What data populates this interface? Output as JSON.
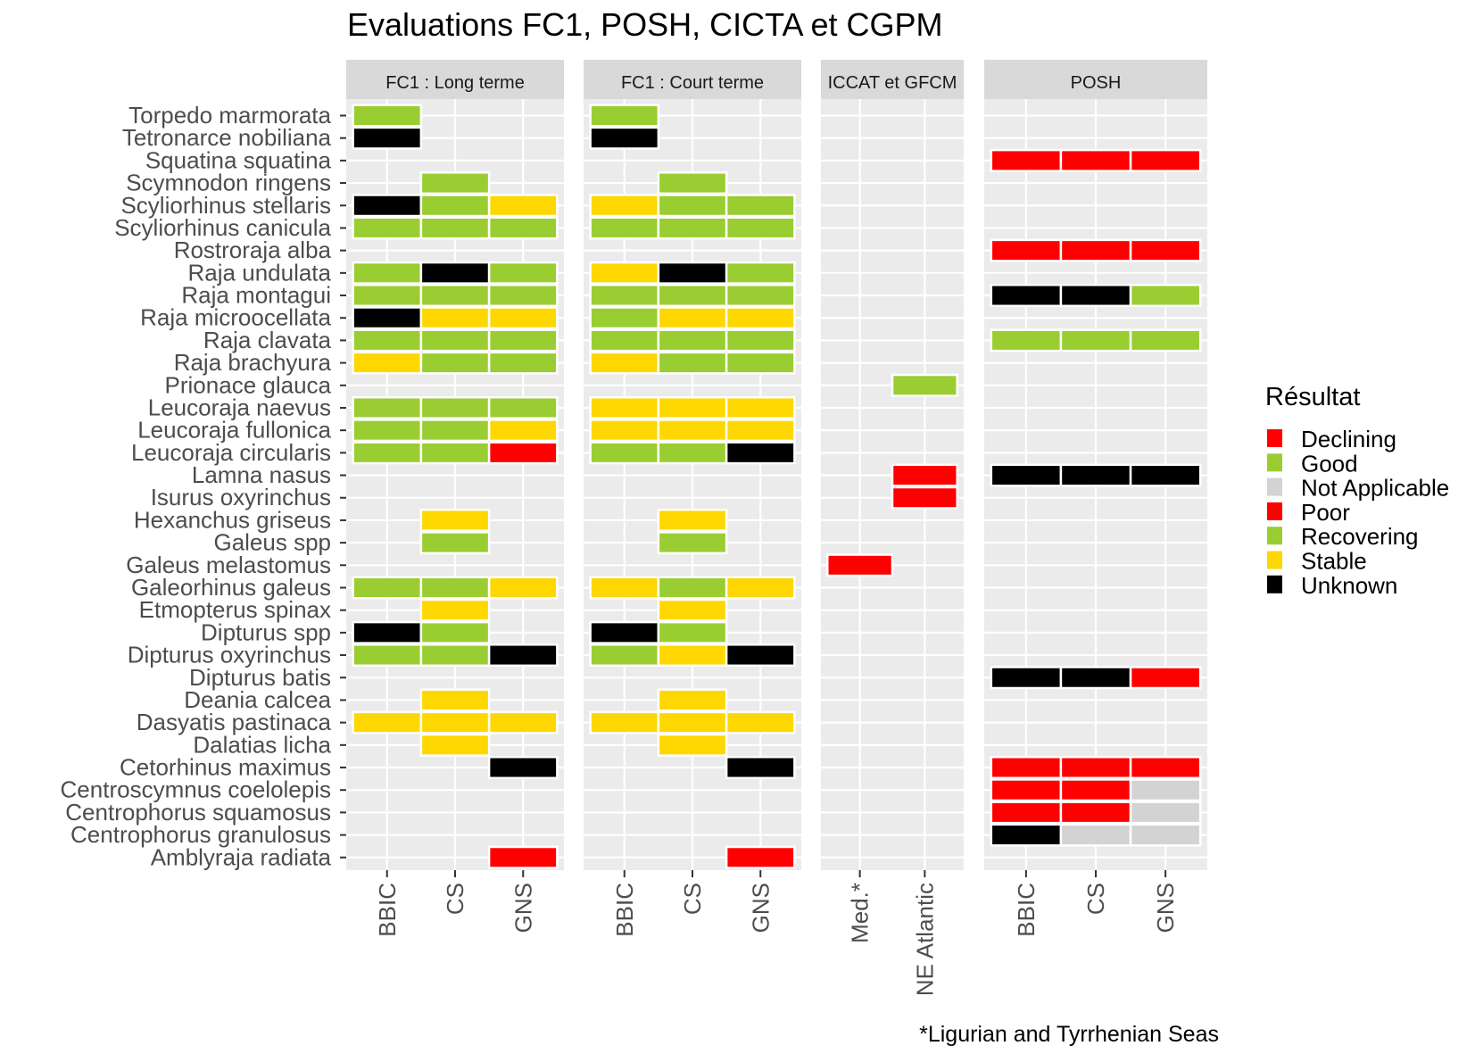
{
  "chart_data": {
    "type": "heatmap",
    "title": "Evaluations FC1, POSH, CICTA et CGPM",
    "caption": "*Ligurian and Tyrrhenian Seas",
    "legend_title": "Résultat",
    "legend_position": "right",
    "legend": [
      {
        "label": "Declining",
        "color": "#FF0000"
      },
      {
        "label": "Good",
        "color": "#9ACD32"
      },
      {
        "label": "Not Applicable",
        "color": "#D3D3D3"
      },
      {
        "label": "Poor",
        "color": "#FF0000"
      },
      {
        "label": "Recovering",
        "color": "#9ACD32"
      },
      {
        "label": "Stable",
        "color": "#FFD700"
      },
      {
        "label": "Unknown",
        "color": "#000000"
      }
    ],
    "species": [
      "Torpedo marmorata",
      "Tetronarce nobiliana",
      "Squatina squatina",
      "Scymnodon ringens",
      "Scyliorhinus stellaris",
      "Scyliorhinus canicula",
      "Rostroraja alba",
      "Raja undulata",
      "Raja montagui",
      "Raja microocellata",
      "Raja clavata",
      "Raja brachyura",
      "Prionace glauca",
      "Leucoraja naevus",
      "Leucoraja fullonica",
      "Leucoraja circularis",
      "Lamna nasus",
      "Isurus oxyrinchus",
      "Hexanchus griseus",
      "Galeus spp",
      "Galeus melastomus",
      "Galeorhinus galeus",
      "Etmopterus spinax",
      "Dipturus spp",
      "Dipturus oxyrinchus",
      "Dipturus batis",
      "Deania calcea",
      "Dasyatis pastinaca",
      "Dalatias licha",
      "Cetorhinus maximus",
      "Centroscymnus coelolepis",
      "Centrophorus squamosus",
      "Centrophorus granulosus",
      "Amblyraja radiata"
    ],
    "panels": [
      {
        "strip": "FC1 : Long terme",
        "columns": [
          "BBIC",
          "CS",
          "GNS"
        ],
        "cells": [
          {
            "species": "Torpedo marmorata",
            "column": "BBIC",
            "value": "Good"
          },
          {
            "species": "Tetronarce nobiliana",
            "column": "BBIC",
            "value": "Unknown"
          },
          {
            "species": "Scymnodon ringens",
            "column": "CS",
            "value": "Good"
          },
          {
            "species": "Scyliorhinus stellaris",
            "column": "BBIC",
            "value": "Unknown"
          },
          {
            "species": "Scyliorhinus stellaris",
            "column": "CS",
            "value": "Good"
          },
          {
            "species": "Scyliorhinus stellaris",
            "column": "GNS",
            "value": "Stable"
          },
          {
            "species": "Scyliorhinus canicula",
            "column": "BBIC",
            "value": "Good"
          },
          {
            "species": "Scyliorhinus canicula",
            "column": "CS",
            "value": "Good"
          },
          {
            "species": "Scyliorhinus canicula",
            "column": "GNS",
            "value": "Good"
          },
          {
            "species": "Raja undulata",
            "column": "BBIC",
            "value": "Good"
          },
          {
            "species": "Raja undulata",
            "column": "CS",
            "value": "Unknown"
          },
          {
            "species": "Raja undulata",
            "column": "GNS",
            "value": "Good"
          },
          {
            "species": "Raja montagui",
            "column": "BBIC",
            "value": "Good"
          },
          {
            "species": "Raja montagui",
            "column": "CS",
            "value": "Good"
          },
          {
            "species": "Raja montagui",
            "column": "GNS",
            "value": "Good"
          },
          {
            "species": "Raja microocellata",
            "column": "BBIC",
            "value": "Unknown"
          },
          {
            "species": "Raja microocellata",
            "column": "CS",
            "value": "Stable"
          },
          {
            "species": "Raja microocellata",
            "column": "GNS",
            "value": "Stable"
          },
          {
            "species": "Raja clavata",
            "column": "BBIC",
            "value": "Good"
          },
          {
            "species": "Raja clavata",
            "column": "CS",
            "value": "Good"
          },
          {
            "species": "Raja clavata",
            "column": "GNS",
            "value": "Good"
          },
          {
            "species": "Raja brachyura",
            "column": "BBIC",
            "value": "Stable"
          },
          {
            "species": "Raja brachyura",
            "column": "CS",
            "value": "Good"
          },
          {
            "species": "Raja brachyura",
            "column": "GNS",
            "value": "Good"
          },
          {
            "species": "Leucoraja naevus",
            "column": "BBIC",
            "value": "Good"
          },
          {
            "species": "Leucoraja naevus",
            "column": "CS",
            "value": "Good"
          },
          {
            "species": "Leucoraja naevus",
            "column": "GNS",
            "value": "Good"
          },
          {
            "species": "Leucoraja fullonica",
            "column": "BBIC",
            "value": "Good"
          },
          {
            "species": "Leucoraja fullonica",
            "column": "CS",
            "value": "Good"
          },
          {
            "species": "Leucoraja fullonica",
            "column": "GNS",
            "value": "Stable"
          },
          {
            "species": "Leucoraja circularis",
            "column": "BBIC",
            "value": "Good"
          },
          {
            "species": "Leucoraja circularis",
            "column": "CS",
            "value": "Good"
          },
          {
            "species": "Leucoraja circularis",
            "column": "GNS",
            "value": "Poor"
          },
          {
            "species": "Hexanchus griseus",
            "column": "CS",
            "value": "Stable"
          },
          {
            "species": "Galeus spp",
            "column": "CS",
            "value": "Good"
          },
          {
            "species": "Galeorhinus galeus",
            "column": "BBIC",
            "value": "Good"
          },
          {
            "species": "Galeorhinus galeus",
            "column": "CS",
            "value": "Good"
          },
          {
            "species": "Galeorhinus galeus",
            "column": "GNS",
            "value": "Stable"
          },
          {
            "species": "Etmopterus spinax",
            "column": "CS",
            "value": "Stable"
          },
          {
            "species": "Dipturus spp",
            "column": "BBIC",
            "value": "Unknown"
          },
          {
            "species": "Dipturus spp",
            "column": "CS",
            "value": "Good"
          },
          {
            "species": "Dipturus oxyrinchus",
            "column": "BBIC",
            "value": "Good"
          },
          {
            "species": "Dipturus oxyrinchus",
            "column": "CS",
            "value": "Good"
          },
          {
            "species": "Dipturus oxyrinchus",
            "column": "GNS",
            "value": "Unknown"
          },
          {
            "species": "Deania calcea",
            "column": "CS",
            "value": "Stable"
          },
          {
            "species": "Dasyatis pastinaca",
            "column": "BBIC",
            "value": "Stable"
          },
          {
            "species": "Dasyatis pastinaca",
            "column": "CS",
            "value": "Stable"
          },
          {
            "species": "Dasyatis pastinaca",
            "column": "GNS",
            "value": "Stable"
          },
          {
            "species": "Dalatias licha",
            "column": "CS",
            "value": "Stable"
          },
          {
            "species": "Cetorhinus maximus",
            "column": "GNS",
            "value": "Unknown"
          },
          {
            "species": "Amblyraja radiata",
            "column": "GNS",
            "value": "Poor"
          }
        ]
      },
      {
        "strip": "FC1 : Court terme",
        "columns": [
          "BBIC",
          "CS",
          "GNS"
        ],
        "cells": [
          {
            "species": "Torpedo marmorata",
            "column": "BBIC",
            "value": "Good"
          },
          {
            "species": "Tetronarce nobiliana",
            "column": "BBIC",
            "value": "Unknown"
          },
          {
            "species": "Scymnodon ringens",
            "column": "CS",
            "value": "Good"
          },
          {
            "species": "Scyliorhinus stellaris",
            "column": "BBIC",
            "value": "Stable"
          },
          {
            "species": "Scyliorhinus stellaris",
            "column": "CS",
            "value": "Good"
          },
          {
            "species": "Scyliorhinus stellaris",
            "column": "GNS",
            "value": "Good"
          },
          {
            "species": "Scyliorhinus canicula",
            "column": "BBIC",
            "value": "Good"
          },
          {
            "species": "Scyliorhinus canicula",
            "column": "CS",
            "value": "Good"
          },
          {
            "species": "Scyliorhinus canicula",
            "column": "GNS",
            "value": "Good"
          },
          {
            "species": "Raja undulata",
            "column": "BBIC",
            "value": "Stable"
          },
          {
            "species": "Raja undulata",
            "column": "CS",
            "value": "Unknown"
          },
          {
            "species": "Raja undulata",
            "column": "GNS",
            "value": "Good"
          },
          {
            "species": "Raja montagui",
            "column": "BBIC",
            "value": "Good"
          },
          {
            "species": "Raja montagui",
            "column": "CS",
            "value": "Good"
          },
          {
            "species": "Raja montagui",
            "column": "GNS",
            "value": "Good"
          },
          {
            "species": "Raja microocellata",
            "column": "BBIC",
            "value": "Good"
          },
          {
            "species": "Raja microocellata",
            "column": "CS",
            "value": "Stable"
          },
          {
            "species": "Raja microocellata",
            "column": "GNS",
            "value": "Stable"
          },
          {
            "species": "Raja clavata",
            "column": "BBIC",
            "value": "Good"
          },
          {
            "species": "Raja clavata",
            "column": "CS",
            "value": "Good"
          },
          {
            "species": "Raja clavata",
            "column": "GNS",
            "value": "Good"
          },
          {
            "species": "Raja brachyura",
            "column": "BBIC",
            "value": "Stable"
          },
          {
            "species": "Raja brachyura",
            "column": "CS",
            "value": "Good"
          },
          {
            "species": "Raja brachyura",
            "column": "GNS",
            "value": "Good"
          },
          {
            "species": "Leucoraja naevus",
            "column": "BBIC",
            "value": "Stable"
          },
          {
            "species": "Leucoraja naevus",
            "column": "CS",
            "value": "Stable"
          },
          {
            "species": "Leucoraja naevus",
            "column": "GNS",
            "value": "Stable"
          },
          {
            "species": "Leucoraja fullonica",
            "column": "BBIC",
            "value": "Stable"
          },
          {
            "species": "Leucoraja fullonica",
            "column": "CS",
            "value": "Stable"
          },
          {
            "species": "Leucoraja fullonica",
            "column": "GNS",
            "value": "Stable"
          },
          {
            "species": "Leucoraja circularis",
            "column": "BBIC",
            "value": "Good"
          },
          {
            "species": "Leucoraja circularis",
            "column": "CS",
            "value": "Good"
          },
          {
            "species": "Leucoraja circularis",
            "column": "GNS",
            "value": "Unknown"
          },
          {
            "species": "Hexanchus griseus",
            "column": "CS",
            "value": "Stable"
          },
          {
            "species": "Galeus spp",
            "column": "CS",
            "value": "Good"
          },
          {
            "species": "Galeorhinus galeus",
            "column": "BBIC",
            "value": "Stable"
          },
          {
            "species": "Galeorhinus galeus",
            "column": "CS",
            "value": "Good"
          },
          {
            "species": "Galeorhinus galeus",
            "column": "GNS",
            "value": "Stable"
          },
          {
            "species": "Etmopterus spinax",
            "column": "CS",
            "value": "Stable"
          },
          {
            "species": "Dipturus spp",
            "column": "BBIC",
            "value": "Unknown"
          },
          {
            "species": "Dipturus spp",
            "column": "CS",
            "value": "Good"
          },
          {
            "species": "Dipturus oxyrinchus",
            "column": "BBIC",
            "value": "Good"
          },
          {
            "species": "Dipturus oxyrinchus",
            "column": "CS",
            "value": "Stable"
          },
          {
            "species": "Dipturus oxyrinchus",
            "column": "GNS",
            "value": "Unknown"
          },
          {
            "species": "Deania calcea",
            "column": "CS",
            "value": "Stable"
          },
          {
            "species": "Dasyatis pastinaca",
            "column": "BBIC",
            "value": "Stable"
          },
          {
            "species": "Dasyatis pastinaca",
            "column": "CS",
            "value": "Stable"
          },
          {
            "species": "Dasyatis pastinaca",
            "column": "GNS",
            "value": "Stable"
          },
          {
            "species": "Dalatias licha",
            "column": "CS",
            "value": "Stable"
          },
          {
            "species": "Cetorhinus maximus",
            "column": "GNS",
            "value": "Unknown"
          },
          {
            "species": "Amblyraja radiata",
            "column": "GNS",
            "value": "Poor"
          }
        ]
      },
      {
        "strip": "ICCAT et GFCM",
        "columns": [
          "Med.*",
          "NE Atlantic"
        ],
        "cells": [
          {
            "species": "Prionace glauca",
            "column": "NE Atlantic",
            "value": "Recovering"
          },
          {
            "species": "Lamna nasus",
            "column": "NE Atlantic",
            "value": "Declining"
          },
          {
            "species": "Isurus oxyrinchus",
            "column": "NE Atlantic",
            "value": "Declining"
          },
          {
            "species": "Galeus melastomus",
            "column": "Med.*",
            "value": "Declining"
          }
        ]
      },
      {
        "strip": "POSH",
        "columns": [
          "BBIC",
          "CS",
          "GNS"
        ],
        "cells": [
          {
            "species": "Squatina squatina",
            "column": "BBIC",
            "value": "Poor"
          },
          {
            "species": "Squatina squatina",
            "column": "CS",
            "value": "Poor"
          },
          {
            "species": "Squatina squatina",
            "column": "GNS",
            "value": "Poor"
          },
          {
            "species": "Rostroraja alba",
            "column": "BBIC",
            "value": "Poor"
          },
          {
            "species": "Rostroraja alba",
            "column": "CS",
            "value": "Poor"
          },
          {
            "species": "Rostroraja alba",
            "column": "GNS",
            "value": "Poor"
          },
          {
            "species": "Raja montagui",
            "column": "BBIC",
            "value": "Unknown"
          },
          {
            "species": "Raja montagui",
            "column": "CS",
            "value": "Unknown"
          },
          {
            "species": "Raja montagui",
            "column": "GNS",
            "value": "Good"
          },
          {
            "species": "Raja clavata",
            "column": "BBIC",
            "value": "Good"
          },
          {
            "species": "Raja clavata",
            "column": "CS",
            "value": "Good"
          },
          {
            "species": "Raja clavata",
            "column": "GNS",
            "value": "Good"
          },
          {
            "species": "Lamna nasus",
            "column": "BBIC",
            "value": "Unknown"
          },
          {
            "species": "Lamna nasus",
            "column": "CS",
            "value": "Unknown"
          },
          {
            "species": "Lamna nasus",
            "column": "GNS",
            "value": "Unknown"
          },
          {
            "species": "Dipturus batis",
            "column": "BBIC",
            "value": "Unknown"
          },
          {
            "species": "Dipturus batis",
            "column": "CS",
            "value": "Unknown"
          },
          {
            "species": "Dipturus batis",
            "column": "GNS",
            "value": "Poor"
          },
          {
            "species": "Cetorhinus maximus",
            "column": "BBIC",
            "value": "Poor"
          },
          {
            "species": "Cetorhinus maximus",
            "column": "CS",
            "value": "Poor"
          },
          {
            "species": "Cetorhinus maximus",
            "column": "GNS",
            "value": "Poor"
          },
          {
            "species": "Centroscymnus coelolepis",
            "column": "BBIC",
            "value": "Poor"
          },
          {
            "species": "Centroscymnus coelolepis",
            "column": "CS",
            "value": "Poor"
          },
          {
            "species": "Centroscymnus coelolepis",
            "column": "GNS",
            "value": "Not Applicable"
          },
          {
            "species": "Centrophorus squamosus",
            "column": "BBIC",
            "value": "Poor"
          },
          {
            "species": "Centrophorus squamosus",
            "column": "CS",
            "value": "Poor"
          },
          {
            "species": "Centrophorus squamosus",
            "column": "GNS",
            "value": "Not Applicable"
          },
          {
            "species": "Centrophorus granulosus",
            "column": "BBIC",
            "value": "Unknown"
          },
          {
            "species": "Centrophorus granulosus",
            "column": "CS",
            "value": "Not Applicable"
          },
          {
            "species": "Centrophorus granulosus",
            "column": "GNS",
            "value": "Not Applicable"
          }
        ]
      }
    ]
  }
}
